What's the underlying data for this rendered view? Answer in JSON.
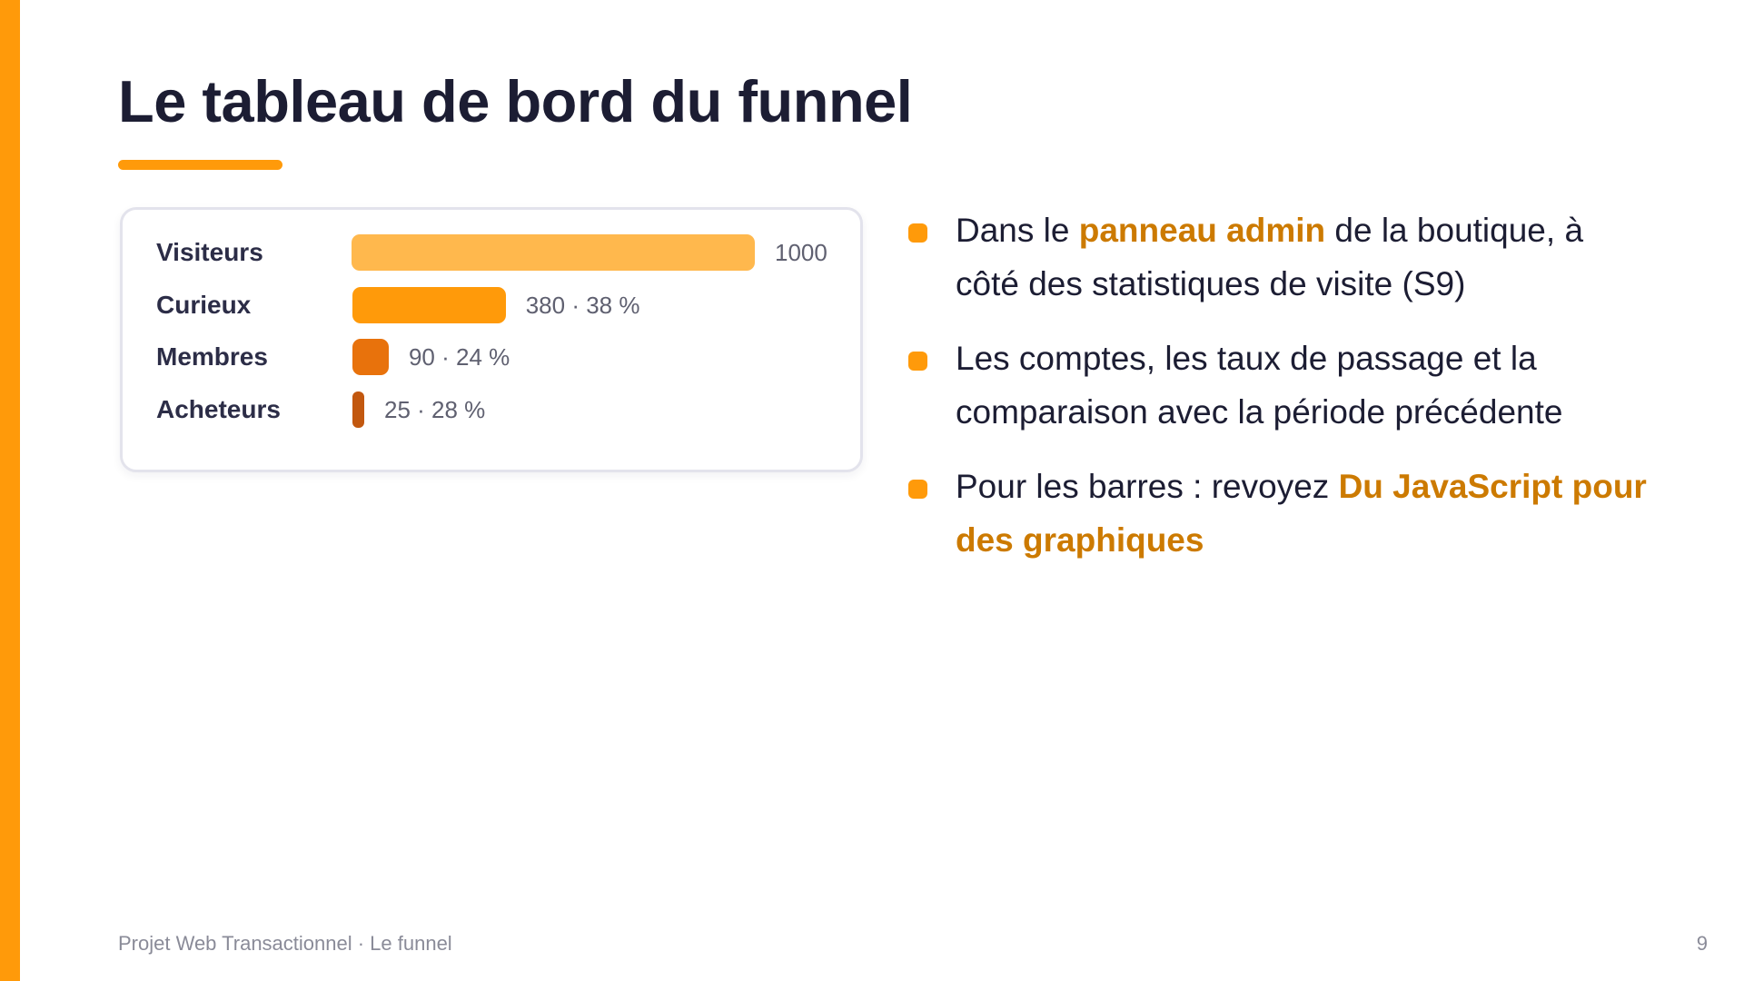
{
  "slide": {
    "title": "Le tableau de bord du funnel",
    "accent_color": "#ff9a0a"
  },
  "funnel": {
    "rows": [
      {
        "label": "Visiteurs",
        "count": 1000,
        "value_text": "1000",
        "color": "#ffb84d"
      },
      {
        "label": "Curieux",
        "count": 380,
        "value_text": "380 · 38 %",
        "color": "#ff9a0a"
      },
      {
        "label": "Membres",
        "count": 90,
        "value_text": "90 · 24 %",
        "color": "#e8720c"
      },
      {
        "label": "Acheteurs",
        "count": 25,
        "value_text": "25 · 28 %",
        "color": "#c2580f"
      }
    ]
  },
  "bullets": [
    {
      "pre": "Dans le ",
      "highlight": "panneau admin",
      "post": " de la boutique, à côté des statistiques de visite (S9)"
    },
    {
      "pre": "Les comptes, les taux de passage et la comparaison avec la période précédente",
      "highlight": "",
      "post": ""
    },
    {
      "pre": "Pour les barres : revoyez ",
      "highlight": "Du JavaScript pour des graphiques",
      "post": ""
    }
  ],
  "footer": {
    "left": "Projet Web Transactionnel · Le funnel",
    "page_number": "9"
  }
}
